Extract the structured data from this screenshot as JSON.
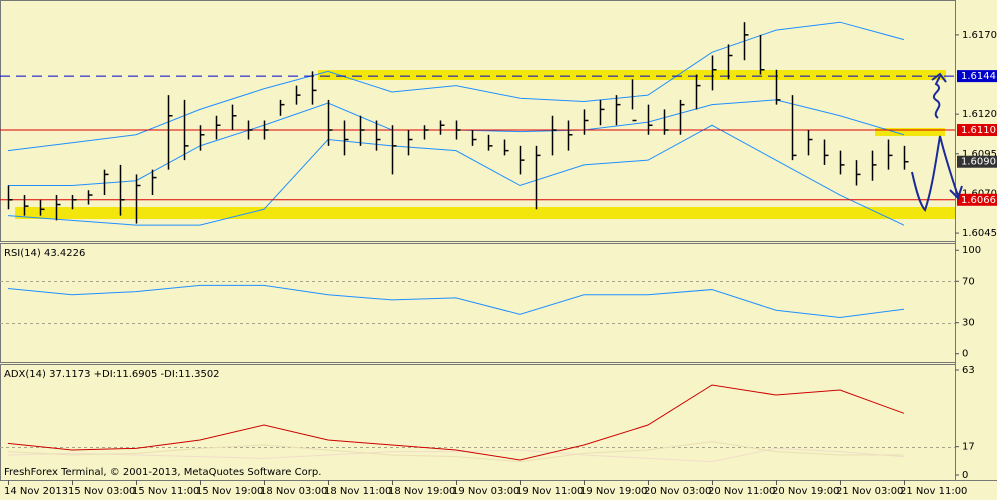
{
  "chart_data": [
    {
      "type": "ohlc",
      "categories": [
        "14 Nov 2013",
        null,
        null,
        null,
        "15 Nov 03:00",
        null,
        null,
        null,
        "15 Nov 11:00",
        null,
        null,
        null,
        "15 Nov 19:00",
        null,
        null,
        null,
        "18 Nov 03:00",
        null,
        null,
        null,
        "18 Nov 11:00",
        null,
        null,
        null,
        "18 Nov 19:00",
        null,
        null,
        null,
        "19 Nov 03:00",
        null,
        null,
        null,
        "19 Nov 11:00",
        null,
        null,
        null,
        "19 Nov 19:00",
        null,
        null,
        null,
        "20 Nov 03:00",
        null,
        null,
        null,
        "20 Nov 11:00",
        null,
        null,
        null,
        "20 Nov 19:00",
        null,
        null,
        null,
        "21 Nov 03:00",
        null,
        null,
        null,
        "21 Nov 11:00"
      ],
      "high": [
        1.6075,
        1.6069,
        1.6066,
        1.6069,
        1.6069,
        1.6072,
        1.6085,
        1.6088,
        1.6082,
        1.6085,
        1.6132,
        1.6129,
        1.6113,
        1.6119,
        1.6126,
        1.6116,
        1.6116,
        1.6129,
        1.6138,
        1.6147,
        1.6129,
        1.6116,
        1.6119,
        1.6116,
        1.6113,
        1.611,
        1.6113,
        1.6116,
        1.6116,
        1.611,
        1.6107,
        1.6104,
        1.61,
        1.61,
        1.6119,
        1.6116,
        1.6123,
        1.6129,
        1.6132,
        1.6142,
        1.6126,
        1.6123,
        1.6129,
        1.6145,
        1.6157,
        1.6164,
        1.6178,
        1.617,
        1.6148,
        1.6132,
        1.611,
        1.6104,
        1.6097,
        1.6091,
        1.6097,
        1.6104,
        1.61
      ],
      "low": [
        1.606,
        1.6056,
        1.6056,
        1.6053,
        1.606,
        1.6063,
        1.6069,
        1.6056,
        1.6051,
        1.6069,
        1.6085,
        1.6091,
        1.6097,
        1.6104,
        1.611,
        1.6104,
        1.6104,
        1.6119,
        1.6126,
        1.6126,
        1.61,
        1.6094,
        1.61,
        1.6097,
        1.6082,
        1.6094,
        1.6104,
        1.6107,
        1.6104,
        1.61,
        1.6097,
        1.6094,
        1.6082,
        1.606,
        1.6094,
        1.6097,
        1.6107,
        1.6113,
        1.6113,
        1.6123,
        1.6107,
        1.6107,
        1.6107,
        1.6123,
        1.6135,
        1.6142,
        1.6154,
        1.6145,
        1.6126,
        1.6091,
        1.6094,
        1.6088,
        1.6082,
        1.6075,
        1.6078,
        1.6085,
        1.6085
      ],
      "close": [
        1.6066,
        1.6062,
        1.606,
        1.6063,
        1.6066,
        1.6069,
        1.6082,
        1.6066,
        1.6075,
        1.608,
        1.6119,
        1.61,
        1.6107,
        1.6113,
        1.6119,
        1.611,
        1.611,
        1.6126,
        1.6132,
        1.6135,
        1.611,
        1.6104,
        1.611,
        1.6104,
        1.61,
        1.6104,
        1.611,
        1.6113,
        1.611,
        1.6104,
        1.61,
        1.6097,
        1.6091,
        1.6094,
        1.611,
        1.6107,
        1.6116,
        1.6123,
        1.6126,
        1.6116,
        1.6113,
        1.611,
        1.6126,
        1.6138,
        1.6148,
        1.6157,
        1.617,
        1.6148,
        1.6129,
        1.6094,
        1.6104,
        1.6094,
        1.6088,
        1.6082,
        1.6088,
        1.6094,
        1.609
      ],
      "bar_color": "#000000",
      "overlay_x": [
        0,
        4,
        8,
        12,
        16,
        20,
        24,
        28,
        32,
        36,
        40,
        44,
        48,
        52,
        56
      ],
      "overlays": [
        {
          "color": "#1e90ff",
          "values": [
            1.6097,
            1.6102,
            1.6107,
            1.6123,
            1.6136,
            1.6147,
            1.6134,
            1.6138,
            1.613,
            1.6128,
            1.6132,
            1.6159,
            1.6173,
            1.6178,
            1.6167
          ]
        },
        {
          "color": "#1e90ff",
          "values": [
            1.6075,
            1.6075,
            1.6078,
            1.61,
            1.6113,
            1.6127,
            1.611,
            1.611,
            1.6109,
            1.611,
            1.6115,
            1.6126,
            1.6129,
            1.6119,
            1.6107
          ]
        },
        {
          "color": "#1e90ff",
          "values": [
            1.6056,
            1.6053,
            1.605,
            1.605,
            1.606,
            1.6104,
            1.61,
            1.6097,
            1.6075,
            1.6088,
            1.6091,
            1.6113,
            1.6091,
            1.6069,
            1.605
          ]
        }
      ],
      "ylim": [
        1.604,
        1.6192
      ],
      "yticks": [
        {
          "value": 1.617,
          "label": "1.6170"
        },
        {
          "value": 1.612,
          "label": "1.6120"
        },
        1.6095,
        {
          "value": 1.607,
          "label": "1.6070"
        },
        1.6045
      ],
      "levels": [
        {
          "value": 1.6144,
          "color": "#0000cc",
          "line": "dashed"
        },
        {
          "value": 1.611,
          "label": "1.6110",
          "color": "#dd0000",
          "line": "solid"
        },
        {
          "value": 1.609,
          "label": "1.6090",
          "color": "#333333",
          "line": "none"
        },
        {
          "value": 1.6066,
          "color": "#dd0000",
          "line": "solid"
        }
      ]
    },
    {
      "type": "line",
      "title": "RSI(14) 43.4226",
      "x": [
        0,
        4,
        8,
        12,
        16,
        20,
        24,
        28,
        32,
        36,
        40,
        44,
        48,
        52,
        56
      ],
      "series": [
        {
          "color": "#1e90ff",
          "values": [
            63,
            57,
            60,
            66,
            66,
            57,
            52,
            54,
            38,
            57,
            57,
            62,
            42,
            35,
            43
          ]
        }
      ],
      "ylim": [
        -8,
        107
      ],
      "yticks": [
        0,
        30,
        70,
        100
      ],
      "gridlines": [
        30,
        70
      ]
    },
    {
      "type": "line",
      "title": "ADX(14) 37.1173 +DI:11.6905 -DI:11.3502",
      "x": [
        0,
        4,
        8,
        12,
        16,
        20,
        24,
        28,
        32,
        36,
        40,
        44,
        48,
        52,
        56
      ],
      "series": [
        {
          "color": "#cc0000",
          "values": [
            19,
            15,
            16,
            21,
            30,
            21,
            18,
            15,
            9,
            18,
            30,
            54,
            48,
            51,
            37
          ]
        },
        {
          "color": "#eadfb4",
          "values": [
            14,
            12,
            13,
            16,
            18,
            15,
            12,
            11,
            8,
            13,
            15,
            20,
            14,
            12,
            12
          ]
        },
        {
          "color": "#f2dccb",
          "values": [
            12,
            13,
            12,
            11,
            10,
            12,
            14,
            14,
            15,
            12,
            10,
            8,
            16,
            14,
            11
          ]
        }
      ],
      "ylim": [
        -3,
        66.6
      ],
      "yticks": [
        0,
        17,
        63
      ],
      "gridlines": [
        17
      ]
    }
  ],
  "footer": "FreshForex Terminal, © 2001-2013, MetaQuotes Software Corp."
}
